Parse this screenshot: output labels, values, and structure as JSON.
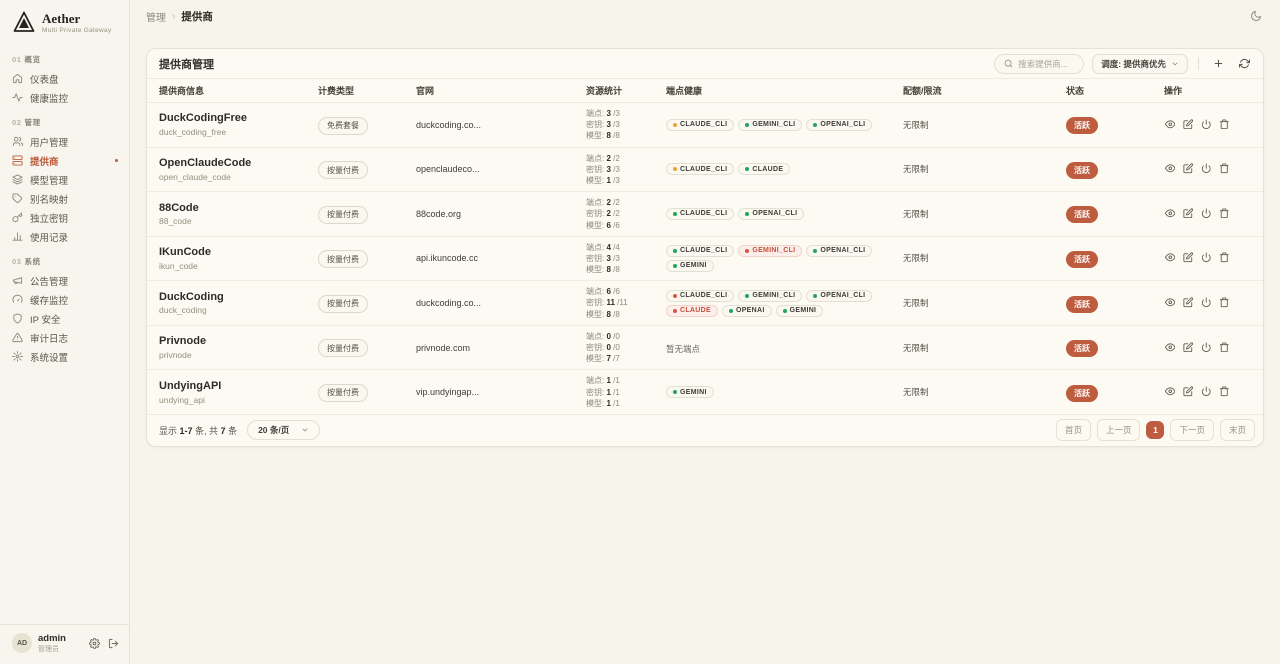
{
  "brand": {
    "name": "Aether",
    "tagline": "Multi Private Gateway"
  },
  "breadcrumb": {
    "parent": "管理",
    "separator": "›",
    "current": "提供商"
  },
  "sidebar": {
    "sections": [
      {
        "index": "01",
        "label": "概览",
        "items": [
          {
            "icon": "home-icon",
            "label": "仪表盘"
          },
          {
            "icon": "activity-icon",
            "label": "健康监控"
          }
        ]
      },
      {
        "index": "02",
        "label": "管理",
        "items": [
          {
            "icon": "users-icon",
            "label": "用户管理"
          },
          {
            "icon": "server-icon",
            "label": "提供商",
            "active": true
          },
          {
            "icon": "layers-icon",
            "label": "模型管理"
          },
          {
            "icon": "tag-icon",
            "label": "别名映射"
          },
          {
            "icon": "key-icon",
            "label": "独立密钥"
          },
          {
            "icon": "chart-icon",
            "label": "使用记录"
          }
        ]
      },
      {
        "index": "03",
        "label": "系统",
        "items": [
          {
            "icon": "megaphone-icon",
            "label": "公告管理"
          },
          {
            "icon": "gauge-icon",
            "label": "缓存监控"
          },
          {
            "icon": "shield-icon",
            "label": "IP 安全"
          },
          {
            "icon": "alert-icon",
            "label": "审计日志"
          },
          {
            "icon": "settings-icon",
            "label": "系统设置"
          }
        ]
      }
    ],
    "user": {
      "initials": "AD",
      "name": "admin",
      "role": "管理员"
    }
  },
  "panel": {
    "title": "提供商管理",
    "search_placeholder": "搜索提供商...",
    "sort_label": "调度: 提供商优先"
  },
  "table": {
    "columns": [
      "提供商信息",
      "计费类型",
      "官网",
      "资源统计",
      "端点健康",
      "配额/限流",
      "状态",
      "操作"
    ],
    "stat_labels": {
      "endpoints": "端点:",
      "keys": "密钥:",
      "models": "模型:"
    },
    "actions": [
      {
        "name": "view",
        "icon": "eye-icon"
      },
      {
        "name": "edit",
        "icon": "edit-icon"
      },
      {
        "name": "toggle-power",
        "icon": "power-icon"
      },
      {
        "name": "delete",
        "icon": "trash-icon"
      }
    ],
    "rows": [
      {
        "name": "DuckCodingFree",
        "id": "duck_coding_free",
        "billing": "免费套餐",
        "website": "duckcoding.co...",
        "endpoints": [
          "3",
          "3"
        ],
        "keys": [
          "3",
          "3"
        ],
        "models": [
          "8",
          "8"
        ],
        "health": [
          {
            "label": "CLAUDE_CLI",
            "dot": "amber"
          },
          {
            "label": "GEMINI_CLI",
            "dot": "green"
          },
          {
            "label": "OPENAI_CLI",
            "dot": "green"
          }
        ],
        "quota": "无限制",
        "status": "活跃"
      },
      {
        "name": "OpenClaudeCode",
        "id": "open_claude_code",
        "billing": "按量付费",
        "website": "openclaudeco...",
        "endpoints": [
          "2",
          "2"
        ],
        "keys": [
          "3",
          "3"
        ],
        "models": [
          "1",
          "3"
        ],
        "health": [
          {
            "label": "CLAUDE_CLI",
            "dot": "amber"
          },
          {
            "label": "CLAUDE",
            "dot": "green"
          }
        ],
        "quota": "无限制",
        "status": "活跃"
      },
      {
        "name": "88Code",
        "id": "88_code",
        "billing": "按量付费",
        "website": "88code.org",
        "endpoints": [
          "2",
          "2"
        ],
        "keys": [
          "2",
          "2"
        ],
        "models": [
          "6",
          "6"
        ],
        "health": [
          {
            "label": "CLAUDE_CLI",
            "dot": "green"
          },
          {
            "label": "OPENAI_CLI",
            "dot": "green"
          }
        ],
        "quota": "无限制",
        "status": "活跃"
      },
      {
        "name": "IKunCode",
        "id": "ikun_code",
        "billing": "按量付费",
        "website": "api.ikuncode.cc",
        "endpoints": [
          "4",
          "4"
        ],
        "keys": [
          "3",
          "3"
        ],
        "models": [
          "8",
          "8"
        ],
        "health": [
          {
            "label": "CLAUDE_CLI",
            "dot": "green"
          },
          {
            "label": "GEMINI_CLI",
            "dot": "red",
            "danger": true
          },
          {
            "label": "OPENAI_CLI",
            "dot": "green"
          },
          {
            "label": "GEMINI",
            "dot": "green"
          }
        ],
        "quota": "无限制",
        "status": "活跃"
      },
      {
        "name": "DuckCoding",
        "id": "duck_coding",
        "billing": "按量付费",
        "website": "duckcoding.co...",
        "endpoints": [
          "6",
          "6"
        ],
        "keys": [
          "11",
          "11"
        ],
        "models": [
          "8",
          "8"
        ],
        "health": [
          {
            "label": "CLAUDE_CLI",
            "dot": "red"
          },
          {
            "label": "GEMINI_CLI",
            "dot": "green"
          },
          {
            "label": "OPENAI_CLI",
            "dot": "green"
          },
          {
            "label": "CLAUDE",
            "dot": "red",
            "danger": true
          },
          {
            "label": "OPENAI",
            "dot": "green"
          },
          {
            "label": "GEMINI",
            "dot": "green"
          }
        ],
        "quota": "无限制",
        "status": "活跃"
      },
      {
        "name": "Privnode",
        "id": "privnode",
        "billing": "按量付费",
        "website": "privnode.com",
        "endpoints": [
          "0",
          "0"
        ],
        "keys": [
          "0",
          "0"
        ],
        "models": [
          "7",
          "7"
        ],
        "health_note": "暂无端点",
        "quota": "无限制",
        "status": "活跃"
      },
      {
        "name": "UndyingAPI",
        "id": "undying_api",
        "billing": "按量付费",
        "website": "vip.undyingap...",
        "endpoints": [
          "1",
          "1"
        ],
        "keys": [
          "1",
          "1"
        ],
        "models": [
          "1",
          "1"
        ],
        "health": [
          {
            "label": "GEMINI",
            "dot": "green"
          }
        ],
        "quota": "无限制",
        "status": "活跃"
      }
    ]
  },
  "footer": {
    "summary": [
      "显示 ",
      "1-7",
      " 条, 共 ",
      "7",
      " 条"
    ],
    "page_size": "20 条/页",
    "pagination": {
      "first": "首页",
      "prev": "上一页",
      "current": "1",
      "next": "下一页",
      "last": "末页"
    }
  }
}
